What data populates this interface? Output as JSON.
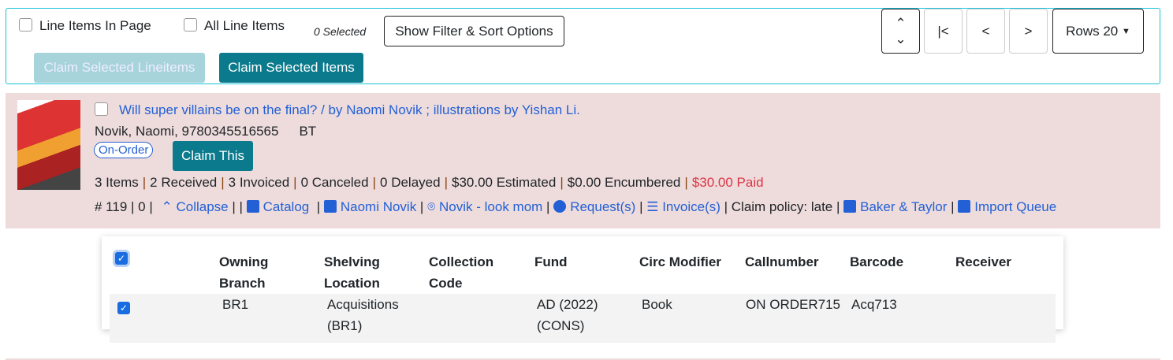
{
  "toolbar": {
    "line_items_in_page": "Line Items In Page",
    "all_line_items": "All Line Items",
    "selected": "0 Selected",
    "filter_sort": "Show Filter & Sort Options",
    "claim_lineitems": "Claim Selected Lineitems",
    "claim_items": "Claim Selected Items",
    "rows": "Rows 20"
  },
  "lineitem": {
    "title": "Will super villains be on the final? / by Naomi Novik ; illustrations by Yishan Li.",
    "author_isbn": "Novik, Naomi, 9780345516565",
    "vendor_code": "BT",
    "status": "On-Order",
    "claim_this": "Claim This",
    "counts": [
      "3 Items",
      "2 Received",
      "3 Invoiced",
      "0 Canceled",
      "0 Delayed",
      "$30.00 Estimated",
      "$0.00 Encumbered"
    ],
    "paid": "$30.00 Paid",
    "id_text": "# 119 | 0 |",
    "collapse": "Collapse",
    "catalog": "Catalog",
    "author_link": "Naomi Novik",
    "novik_link": "Novik - look mom",
    "requests": "Request(s)",
    "invoices": "Invoice(s)",
    "claim_policy": "Claim policy: late",
    "vendor": "Baker & Taylor",
    "import_queue": "Import Queue"
  },
  "table": {
    "headers": [
      "Owning Branch",
      "Shelving Location",
      "Collection Code",
      "Fund",
      "Circ Modifier",
      "Callnumber",
      "Barcode",
      "Receiver"
    ],
    "rows": [
      [
        "BR1",
        "Acquisitions (BR1)",
        "",
        "AD (2022) (CONS)",
        "Book",
        "ON ORDER715",
        "Acq713",
        ""
      ]
    ]
  },
  "colors": {
    "accent": "#0a7a8c",
    "link": "#2360d6",
    "paid": "#dc3545",
    "row_bg": "#eedcdc"
  }
}
